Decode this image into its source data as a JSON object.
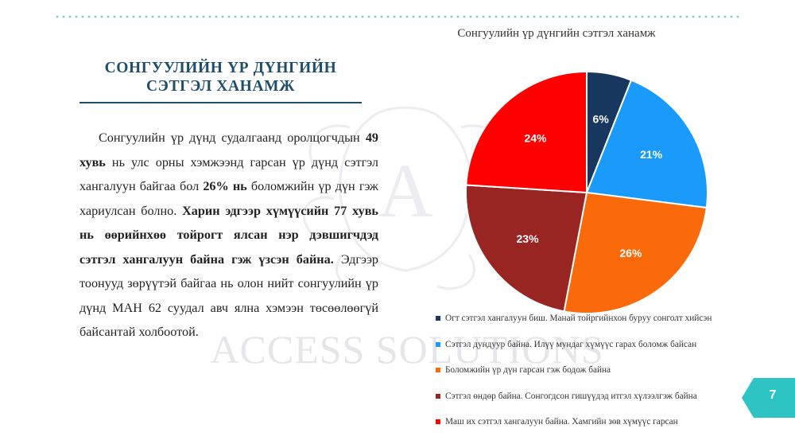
{
  "slide": {
    "title": "СОНГУУЛИЙН ҮР ДҮНГИЙН СЭТГЭЛ ХАНАМЖ",
    "paragraph": [
      {
        "text": "Сонгуулийн үр дүнд судалгаанд оролцогчдын ",
        "bold": false
      },
      {
        "text": "49 хувь",
        "bold": true
      },
      {
        "text": " нь улс орны хэмжээнд гарсан үр дүнд сэтгэл хангалуун байгаа бол ",
        "bold": false
      },
      {
        "text": "26% нь",
        "bold": true
      },
      {
        "text": " боломжийн үр дүн гэж хариулсан болно. ",
        "bold": false
      },
      {
        "text": "Харин эдгээр хүмүүсийн 77 хувь нь өөрийнхөө тойрогт ялсан нэр дэвшигчдэд сэтгэл хангалуун байна гэж үзсэн байна.",
        "bold": true
      },
      {
        "text": " Эдгээр тоонууд зөрүүтэй байгаа нь олон нийт сонгуулийн үр дүнд МАН 62 суудал авч ялна хэмээн төсөөлөөгүй байсантай холбоотой.",
        "bold": false
      }
    ],
    "watermark_text": "ACCESS SOLUTIONS",
    "page_number": "7",
    "colors": {
      "accent": "#2ec4c4",
      "title": "#1f4e6b",
      "dots": "#7fd6cf"
    }
  },
  "chart_data": {
    "type": "pie",
    "title": "Сонгуулийн үр дүнгийн сэтгэл ханамж",
    "slices": [
      {
        "label": "Огт сэтгэл хангалуун биш. Манай тойргийнхон буруу сонголт хийсэн",
        "value": 6,
        "value_label": "6%",
        "color": "#17375e"
      },
      {
        "label": "Сэтгэл дундуур байна. Илүү мундаг хүмүүс гарах боломж байсан",
        "value": 21,
        "value_label": "21%",
        "color": "#1a9bfc"
      },
      {
        "label": "Боломжийн үр дүн гарсан гэж бодож байна",
        "value": 26,
        "value_label": "26%",
        "color": "#fa6a0a"
      },
      {
        "label": "Сэтгэл өндөр байна. Сонгогдсон гишүүдэд итгэл хүлээлгэж байна",
        "value": 23,
        "value_label": "23%",
        "color": "#992523"
      },
      {
        "label": "Маш их сэтгэл хангалуун байна. Хамгийн зөв хүмүүс гарсан",
        "value": 24,
        "value_label": "24%",
        "color": "#ff0000"
      }
    ],
    "legend_position": "bottom"
  }
}
